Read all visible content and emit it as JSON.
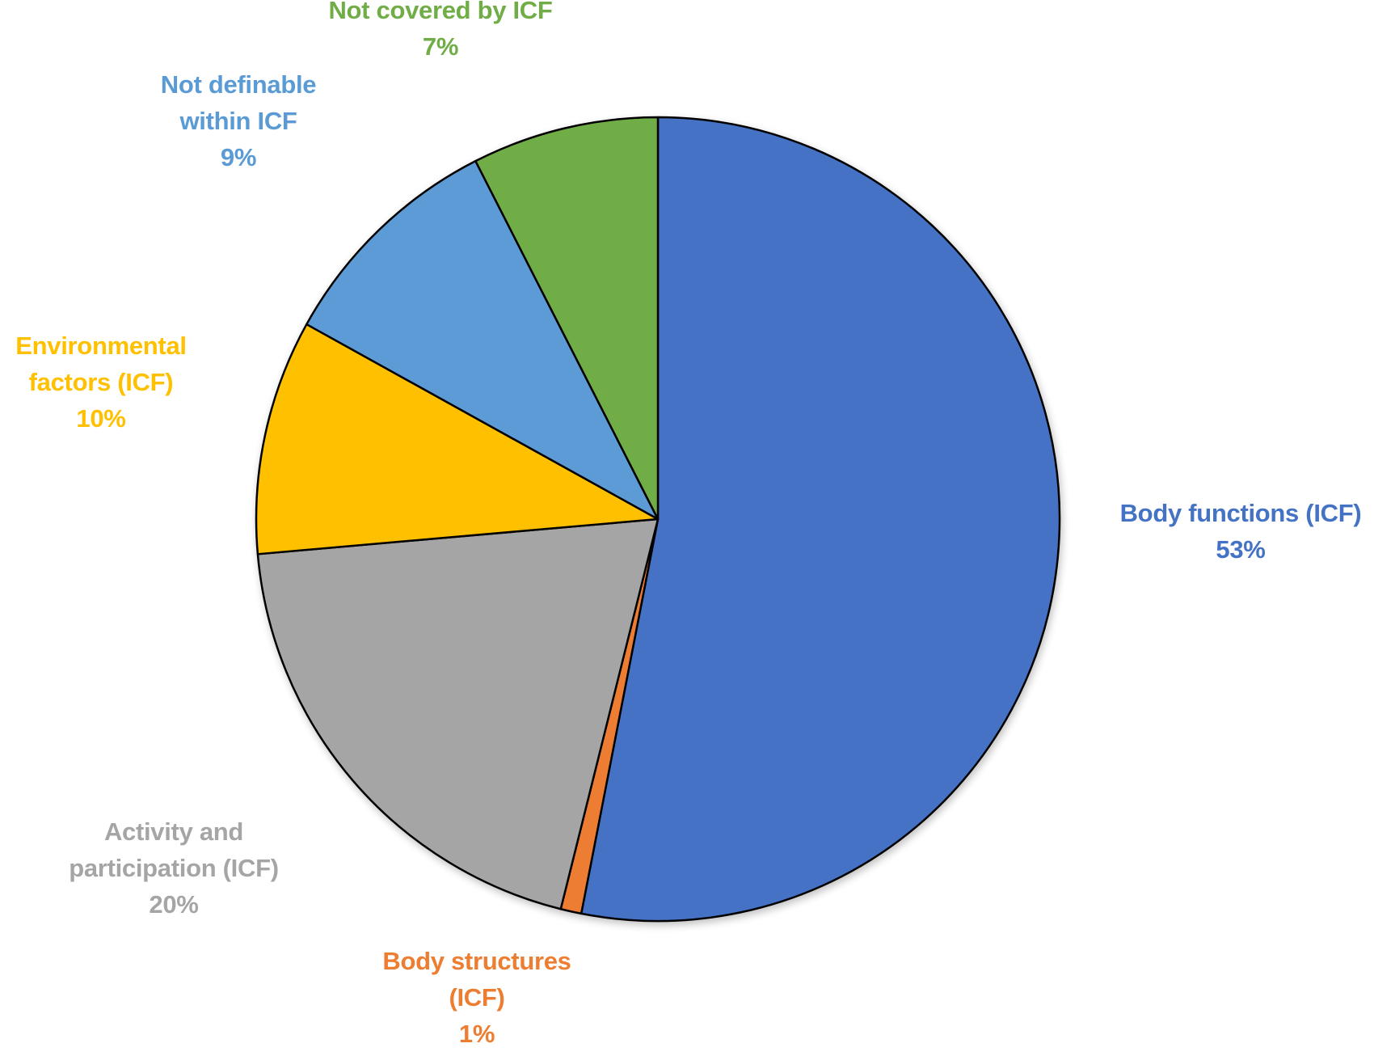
{
  "chart_data": {
    "type": "pie",
    "title": "",
    "start_angle_deg": 0,
    "direction": "clockwise",
    "legend": "none (data labels on slices)",
    "slices": [
      {
        "key": "body_functions",
        "label_lines": [
          "Body functions (ICF)"
        ],
        "label": "Body functions (ICF)",
        "value": 53,
        "value_label": "53%",
        "color": "#4472C4"
      },
      {
        "key": "body_structures",
        "label_lines": [
          "Body structures",
          "(ICF)"
        ],
        "label": "Body structures (ICF)",
        "value": 1,
        "value_label": "1%",
        "color": "#ED7D31"
      },
      {
        "key": "activity_participation",
        "label_lines": [
          "Activity and",
          "participation (ICF)"
        ],
        "label": "Activity and participation (ICF)",
        "value": 20,
        "value_label": "20%",
        "color": "#A5A5A5"
      },
      {
        "key": "environmental_factors",
        "label_lines": [
          "Environmental",
          "factors (ICF)"
        ],
        "label": "Environmental factors (ICF)",
        "value": 10,
        "value_label": "10%",
        "color": "#FFC000"
      },
      {
        "key": "not_definable",
        "label_lines": [
          "Not definable",
          "within ICF"
        ],
        "label": "Not definable within ICF",
        "value": 9,
        "value_label": "9%",
        "color": "#5B9BD5"
      },
      {
        "key": "not_covered",
        "label_lines": [
          "Not covered by ICF"
        ],
        "label": "Not covered by ICF",
        "value": 7,
        "value_label": "7%",
        "color": "#70AD47"
      }
    ],
    "render_boundaries_deg": [
      0,
      191,
      194,
      265,
      299,
      333,
      360
    ]
  },
  "labels": {
    "body_functions": {
      "line1": "Body functions (ICF)",
      "pct": "53%"
    },
    "body_structures": {
      "line1": "Body structures",
      "line2": "(ICF)",
      "pct": "1%"
    },
    "activity_participation": {
      "line1": "Activity and",
      "line2": "participation (ICF)",
      "pct": "20%"
    },
    "environmental_factors": {
      "line1": "Environmental",
      "line2": "factors (ICF)",
      "pct": "10%"
    },
    "not_definable": {
      "line1": "Not definable",
      "line2": "within ICF",
      "pct": "9%"
    },
    "not_covered": {
      "line1": "Not covered by ICF",
      "pct": "7%"
    }
  }
}
